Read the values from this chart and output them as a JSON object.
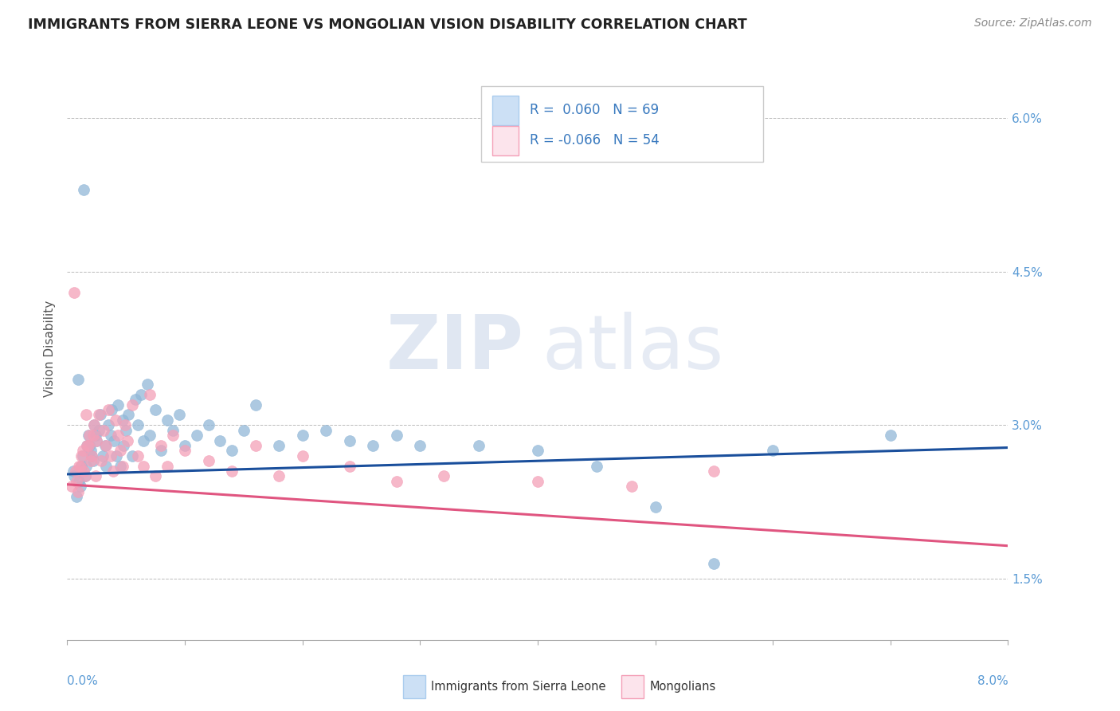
{
  "title": "IMMIGRANTS FROM SIERRA LEONE VS MONGOLIAN VISION DISABILITY CORRELATION CHART",
  "source": "Source: ZipAtlas.com",
  "ylabel": "Vision Disability",
  "right_yticks": [
    1.5,
    3.0,
    4.5,
    6.0
  ],
  "right_ytick_labels": [
    "1.5%",
    "3.0%",
    "4.5%",
    "6.0%"
  ],
  "xlim": [
    0.0,
    8.0
  ],
  "ylim": [
    0.9,
    6.6
  ],
  "blue_color": "#92b8d8",
  "pink_color": "#f4a0b8",
  "blue_line_color": "#1a4f9c",
  "pink_line_color": "#e05580",
  "legend_R1": "R =  0.060",
  "legend_N1": "N = 69",
  "legend_R2": "R = -0.066",
  "legend_N2": "N = 54",
  "watermark_zip": "ZIP",
  "watermark_atlas": "atlas",
  "blue_scatter_x": [
    0.05,
    0.08,
    0.1,
    0.12,
    0.13,
    0.15,
    0.17,
    0.18,
    0.2,
    0.22,
    0.23,
    0.25,
    0.27,
    0.28,
    0.3,
    0.32,
    0.33,
    0.35,
    0.37,
    0.38,
    0.4,
    0.42,
    0.43,
    0.45,
    0.47,
    0.48,
    0.5,
    0.52,
    0.55,
    0.58,
    0.6,
    0.63,
    0.65,
    0.68,
    0.7,
    0.75,
    0.8,
    0.85,
    0.9,
    0.95,
    1.0,
    1.1,
    1.2,
    1.3,
    1.4,
    1.5,
    1.6,
    1.8,
    2.0,
    2.2,
    2.4,
    2.6,
    2.8,
    3.0,
    3.5,
    4.0,
    4.5,
    5.0,
    5.5,
    6.0,
    7.0,
    0.06,
    0.09,
    0.11,
    0.14,
    0.16,
    0.19,
    0.21,
    0.24
  ],
  "blue_scatter_y": [
    2.55,
    2.3,
    2.45,
    2.6,
    2.7,
    2.5,
    2.8,
    2.9,
    2.75,
    2.65,
    3.0,
    2.85,
    2.95,
    3.1,
    2.7,
    2.8,
    2.6,
    3.0,
    2.9,
    3.15,
    2.85,
    2.7,
    3.2,
    2.6,
    3.05,
    2.8,
    2.95,
    3.1,
    2.7,
    3.25,
    3.0,
    3.3,
    2.85,
    3.4,
    2.9,
    3.15,
    2.75,
    3.05,
    2.95,
    3.1,
    2.8,
    2.9,
    3.0,
    2.85,
    2.75,
    2.95,
    3.2,
    2.8,
    2.9,
    2.95,
    2.85,
    2.8,
    2.9,
    2.8,
    2.8,
    2.75,
    2.6,
    2.2,
    1.65,
    2.75,
    2.9,
    2.5,
    3.45,
    2.4,
    5.3,
    2.6,
    2.8,
    2.7,
    2.9
  ],
  "pink_scatter_x": [
    0.04,
    0.07,
    0.09,
    0.11,
    0.13,
    0.15,
    0.17,
    0.19,
    0.21,
    0.23,
    0.25,
    0.27,
    0.29,
    0.31,
    0.33,
    0.35,
    0.37,
    0.39,
    0.41,
    0.43,
    0.45,
    0.47,
    0.49,
    0.51,
    0.55,
    0.6,
    0.65,
    0.7,
    0.75,
    0.8,
    0.85,
    0.9,
    1.0,
    1.2,
    1.4,
    1.6,
    1.8,
    2.0,
    2.4,
    2.8,
    3.2,
    4.0,
    4.8,
    5.5,
    0.06,
    0.08,
    0.1,
    0.12,
    0.14,
    0.16,
    0.18,
    0.2,
    0.22,
    0.24
  ],
  "pink_scatter_y": [
    2.4,
    2.55,
    2.35,
    2.6,
    2.75,
    2.5,
    2.8,
    2.9,
    2.7,
    3.0,
    2.85,
    3.1,
    2.65,
    2.95,
    2.8,
    3.15,
    2.7,
    2.55,
    3.05,
    2.9,
    2.75,
    2.6,
    3.0,
    2.85,
    3.2,
    2.7,
    2.6,
    3.3,
    2.5,
    2.8,
    2.6,
    2.9,
    2.75,
    2.65,
    2.55,
    2.8,
    2.5,
    2.7,
    2.6,
    2.45,
    2.5,
    2.45,
    2.4,
    2.55,
    4.3,
    2.45,
    2.6,
    2.7,
    2.55,
    3.1,
    2.8,
    2.65,
    2.9,
    2.5
  ],
  "blue_trend_x0": 0.0,
  "blue_trend_y0": 2.52,
  "blue_trend_x1": 8.0,
  "blue_trend_y1": 2.78,
  "pink_trend_x0": 0.0,
  "pink_trend_y0": 2.42,
  "pink_trend_x1": 8.0,
  "pink_trend_y1": 1.82
}
